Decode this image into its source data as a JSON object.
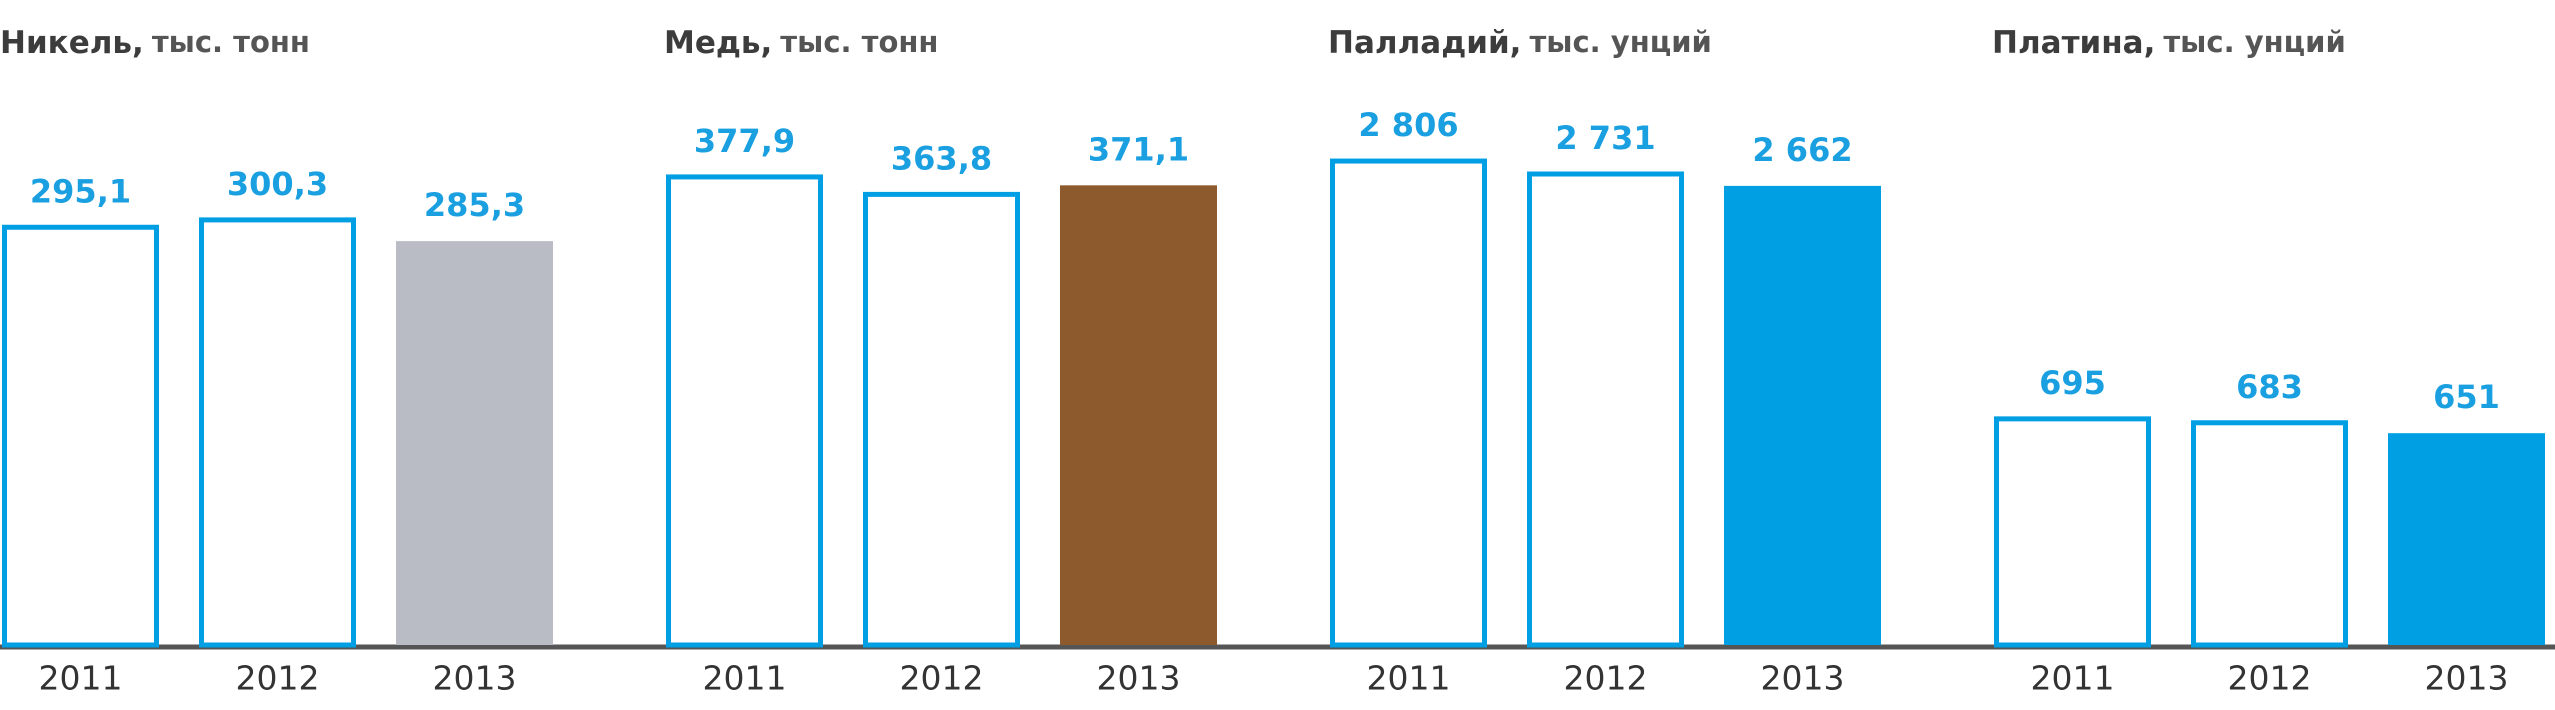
{
  "chart_data": [
    {
      "type": "bar",
      "title": "Никель,",
      "subtitle": "тыс. тонн",
      "categories": [
        "2011",
        "2012",
        "2013"
      ],
      "values": [
        295.1,
        300.3,
        285.3
      ],
      "value_labels": [
        "295,1",
        "300,3",
        "285,3"
      ],
      "ylim": [
        0,
        385
      ],
      "color": "#009fe3",
      "bar_colors": [
        "#ffffff",
        "#ffffff",
        "#b9bcc4"
      ]
    },
    {
      "type": "bar",
      "title": "Медь,",
      "subtitle": "тыс. тонн",
      "categories": [
        "2011",
        "2012",
        "2013"
      ],
      "values": [
        377.9,
        363.8,
        371.1
      ],
      "value_labels": [
        "377,9",
        "363,8",
        "371,1"
      ],
      "ylim": [
        0,
        440
      ],
      "color": "#009fe3",
      "bar_colors": [
        "#ffffff",
        "#ffffff",
        "#8c5a2c"
      ]
    },
    {
      "type": "bar",
      "title": "Палладий,",
      "subtitle": "тыс. унций",
      "categories": [
        "2011",
        "2012",
        "2013"
      ],
      "values": [
        2806,
        2731,
        2662
      ],
      "value_labels": [
        "2 806",
        "2 731",
        "2 662"
      ],
      "ylim": [
        0,
        3160
      ],
      "color": "#009fe3",
      "bar_colors": [
        "#ffffff",
        "#ffffff",
        "#009fe3"
      ]
    },
    {
      "type": "bar",
      "title": "Платина,",
      "subtitle": "тыс. унций",
      "categories": [
        "2011",
        "2012",
        "2013"
      ],
      "values": [
        695,
        683,
        651
      ],
      "value_labels": [
        "695",
        "683",
        "651"
      ],
      "ylim": [
        0,
        1675
      ],
      "color": "#009fe3",
      "bar_colors": [
        "#ffffff",
        "#ffffff",
        "#009fe3"
      ]
    }
  ]
}
